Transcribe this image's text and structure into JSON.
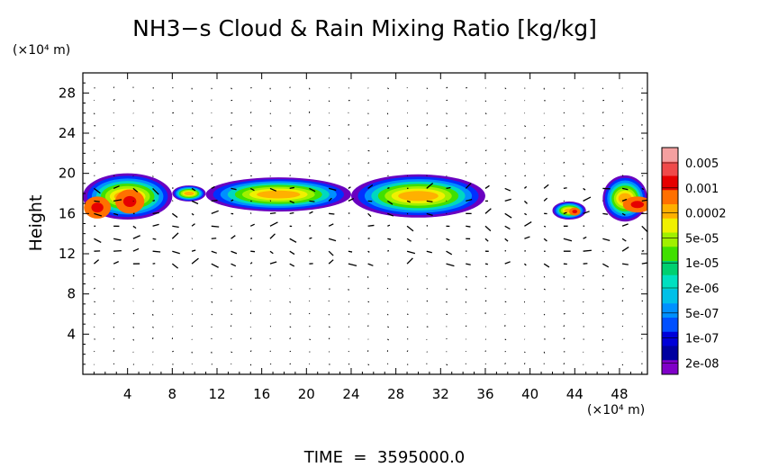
{
  "chart_data": {
    "type": "heatmap",
    "title": "NH3−s Cloud & Rain Mixing Ratio [kg/kg]",
    "ylabel": "Height",
    "y_unit": "(×10⁴ m)",
    "x_unit": "(×10⁴ m)",
    "footer": "TIME  =  3595000.0",
    "xlim": [
      0,
      50.5
    ],
    "ylim": [
      0,
      30
    ],
    "x_ticks": [
      "4",
      "8",
      "12",
      "16",
      "20",
      "24",
      "28",
      "32",
      "36",
      "40",
      "44",
      "48"
    ],
    "y_ticks": [
      "4",
      "8",
      "12",
      "16",
      "20",
      "24",
      "28"
    ],
    "colorbar": {
      "labels": [
        "0.005",
        "0.001",
        "0.0002",
        "5e-05",
        "1e-05",
        "2e-06",
        "5e-07",
        "1e-07",
        "2e-08"
      ],
      "colors": [
        "#f4a0a0",
        "#f04a4a",
        "#e60000",
        "#ff7000",
        "#ffb000",
        "#f0f000",
        "#a0f000",
        "#40e000",
        "#00d070",
        "#00e0c0",
        "#00c0e8",
        "#0090ff",
        "#0050ff",
        "#0000d8",
        "#0000a0",
        "#8000c8"
      ]
    },
    "cloud_bands": [
      {
        "x": [
          0,
          8
        ],
        "y": [
          15.4,
          20
        ]
      },
      {
        "x": [
          8,
          11
        ],
        "y": [
          17.2,
          18.8
        ]
      },
      {
        "x": [
          11,
          24
        ],
        "y": [
          16.2,
          19.6
        ]
      },
      {
        "x": [
          24,
          36
        ],
        "y": [
          15.6,
          19.9
        ]
      },
      {
        "x": [
          42,
          45
        ],
        "y": [
          15.4,
          17.2
        ]
      },
      {
        "x": [
          46.5,
          50.5
        ],
        "y": [
          15.2,
          19.8
        ]
      }
    ]
  }
}
